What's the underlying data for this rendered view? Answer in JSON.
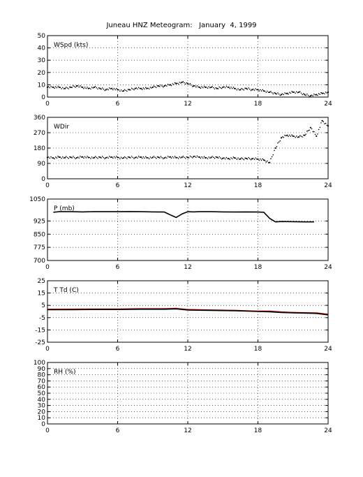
{
  "title": "Juneau HNZ Meteogram:   January  4, 1999",
  "chart_data": [
    {
      "type": "line",
      "panel_label": "WSpd (kts)",
      "xlim": [
        0,
        24
      ],
      "xticks": [
        0,
        6,
        12,
        18,
        24
      ],
      "ylim": [
        0,
        50
      ],
      "yticks": [
        0,
        10,
        20,
        30,
        40,
        50
      ],
      "grid": true,
      "series": [
        {
          "style": "dots",
          "color": "#000000",
          "x": [
            0,
            0.5,
            1,
            1.5,
            2,
            2.5,
            3,
            3.5,
            4,
            4.5,
            5,
            5.5,
            6,
            6.5,
            7,
            7.5,
            8,
            8.5,
            9,
            9.5,
            10,
            10.5,
            11,
            11.5,
            12,
            12.5,
            13,
            13.5,
            14,
            14.5,
            15,
            15.5,
            16,
            16.5,
            17,
            17.5,
            18,
            18.5,
            19,
            19.5,
            20,
            20.5,
            21,
            21.5,
            22,
            22.5,
            23,
            23.5,
            24
          ],
          "y": [
            8,
            8,
            8,
            7,
            8,
            9,
            8,
            7,
            8,
            7,
            6,
            7,
            6,
            5,
            6,
            7,
            7,
            7,
            8,
            9,
            9,
            10,
            11,
            12,
            11,
            9,
            8,
            8,
            8,
            7,
            8,
            8,
            7,
            6,
            7,
            6,
            6,
            5,
            4,
            3,
            2,
            3,
            4,
            4,
            2,
            1,
            2,
            3,
            4
          ]
        }
      ]
    },
    {
      "type": "line",
      "panel_label": "WDir",
      "xlim": [
        0,
        24
      ],
      "xticks": [
        0,
        6,
        12,
        18,
        24
      ],
      "ylim": [
        0,
        360
      ],
      "yticks": [
        0,
        90,
        180,
        270,
        360
      ],
      "grid": true,
      "series": [
        {
          "style": "dots",
          "color": "#000000",
          "x": [
            0,
            0.5,
            1,
            1.5,
            2,
            2.5,
            3,
            3.5,
            4,
            4.5,
            5,
            5.5,
            6,
            6.5,
            7,
            7.5,
            8,
            8.5,
            9,
            9.5,
            10,
            10.5,
            11,
            11.5,
            12,
            12.5,
            13,
            13.5,
            14,
            14.5,
            15,
            15.5,
            16,
            16.5,
            17,
            17.5,
            18,
            18.5,
            19,
            19.5,
            20,
            20.5,
            21,
            21.5,
            22,
            22.5,
            23,
            23.5,
            24
          ],
          "y": [
            125,
            122,
            127,
            124,
            126,
            123,
            128,
            125,
            124,
            126,
            123,
            127,
            125,
            122,
            126,
            124,
            127,
            123,
            125,
            126,
            122,
            128,
            124,
            126,
            125,
            130,
            127,
            123,
            125,
            126,
            120,
            118,
            122,
            116,
            119,
            117,
            115,
            110,
            95,
            180,
            240,
            255,
            250,
            245,
            255,
            300,
            250,
            340,
            310
          ]
        }
      ]
    },
    {
      "type": "line",
      "panel_label": "P (mb)",
      "xlim": [
        0,
        24
      ],
      "xticks": [
        0,
        6,
        12,
        18,
        24
      ],
      "ylim": [
        700,
        1050
      ],
      "yticks": [
        700,
        775,
        850,
        925,
        1050
      ],
      "grid": true,
      "series": [
        {
          "style": "line",
          "color": "#000000",
          "x": [
            0.5,
            1,
            2,
            3,
            4,
            5,
            6,
            7,
            8,
            9,
            10,
            10.5,
            11,
            11.5,
            12,
            12.5,
            13,
            14,
            15,
            16,
            17,
            18,
            18.5,
            19,
            19.5,
            20,
            21,
            22,
            22.8
          ],
          "y": [
            975,
            978,
            978,
            977,
            978,
            978,
            978,
            979,
            978,
            977,
            976,
            960,
            945,
            965,
            978,
            977,
            978,
            978,
            977,
            976,
            977,
            976,
            975,
            940,
            920,
            922,
            921,
            920,
            920
          ]
        }
      ]
    },
    {
      "type": "line",
      "panel_label": "T Td (C)",
      "xlim": [
        0,
        24
      ],
      "xticks": [
        0,
        6,
        12,
        18,
        24
      ],
      "ylim": [
        -25,
        25
      ],
      "yticks": [
        -25,
        -15,
        -5,
        5,
        15,
        25
      ],
      "grid": true,
      "series": [
        {
          "style": "line",
          "color": "#cc0000",
          "x": [
            0,
            2,
            4,
            6,
            8,
            10,
            11,
            12,
            14,
            16,
            18,
            19,
            20,
            21,
            22,
            23,
            24
          ],
          "y": [
            1.8,
            1.9,
            2.0,
            2.0,
            2.3,
            2.2,
            2.5,
            1.6,
            1.2,
            0.9,
            0.3,
            0.2,
            -0.4,
            -0.8,
            -1.0,
            -1.2,
            -2.3
          ]
        },
        {
          "style": "line",
          "color": "#000000",
          "x": [
            0,
            2,
            4,
            6,
            8,
            10,
            11,
            12,
            14,
            16,
            18,
            19,
            20,
            21,
            22,
            23,
            24
          ],
          "y": [
            1.4,
            1.5,
            1.6,
            1.6,
            1.8,
            1.8,
            2.1,
            1.2,
            0.9,
            0.6,
            0.0,
            -0.2,
            -0.8,
            -1.1,
            -1.3,
            -1.6,
            -2.7
          ]
        }
      ]
    },
    {
      "type": "line",
      "panel_label": "RH (%)",
      "xlim": [
        0,
        24
      ],
      "xticks": [
        0,
        6,
        12,
        18,
        24
      ],
      "ylim": [
        0,
        100
      ],
      "yticks": [
        0,
        10,
        20,
        30,
        40,
        50,
        60,
        70,
        80,
        90,
        100
      ],
      "grid": true,
      "series": []
    }
  ]
}
